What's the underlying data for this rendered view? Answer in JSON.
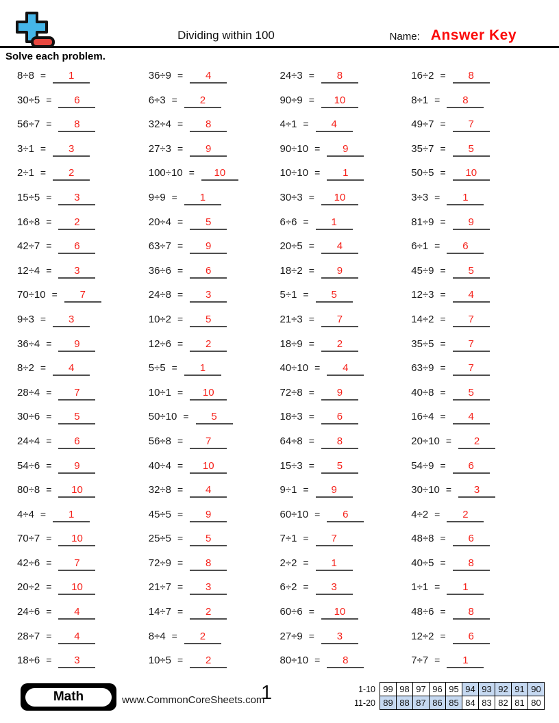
{
  "header": {
    "title": "Dividing within 100",
    "name_label": "Name:",
    "name_value": "Answer Key"
  },
  "instructions": "Solve each problem.",
  "equals_sign": "=",
  "problems": [
    {
      "expr": "8÷8",
      "ans": "1"
    },
    {
      "expr": "36÷9",
      "ans": "4"
    },
    {
      "expr": "24÷3",
      "ans": "8"
    },
    {
      "expr": "16÷2",
      "ans": "8"
    },
    {
      "expr": "30÷5",
      "ans": "6"
    },
    {
      "expr": "6÷3",
      "ans": "2"
    },
    {
      "expr": "90÷9",
      "ans": "10"
    },
    {
      "expr": "8÷1",
      "ans": "8"
    },
    {
      "expr": "56÷7",
      "ans": "8"
    },
    {
      "expr": "32÷4",
      "ans": "8"
    },
    {
      "expr": "4÷1",
      "ans": "4"
    },
    {
      "expr": "49÷7",
      "ans": "7"
    },
    {
      "expr": "3÷1",
      "ans": "3"
    },
    {
      "expr": "27÷3",
      "ans": "9"
    },
    {
      "expr": "90÷10",
      "ans": "9"
    },
    {
      "expr": "35÷7",
      "ans": "5"
    },
    {
      "expr": "2÷1",
      "ans": "2"
    },
    {
      "expr": "100÷10",
      "ans": "10"
    },
    {
      "expr": "10÷10",
      "ans": "1"
    },
    {
      "expr": "50÷5",
      "ans": "10"
    },
    {
      "expr": "15÷5",
      "ans": "3"
    },
    {
      "expr": "9÷9",
      "ans": "1"
    },
    {
      "expr": "30÷3",
      "ans": "10"
    },
    {
      "expr": "3÷3",
      "ans": "1"
    },
    {
      "expr": "16÷8",
      "ans": "2"
    },
    {
      "expr": "20÷4",
      "ans": "5"
    },
    {
      "expr": "6÷6",
      "ans": "1"
    },
    {
      "expr": "81÷9",
      "ans": "9"
    },
    {
      "expr": "42÷7",
      "ans": "6"
    },
    {
      "expr": "63÷7",
      "ans": "9"
    },
    {
      "expr": "20÷5",
      "ans": "4"
    },
    {
      "expr": "6÷1",
      "ans": "6"
    },
    {
      "expr": "12÷4",
      "ans": "3"
    },
    {
      "expr": "36÷6",
      "ans": "6"
    },
    {
      "expr": "18÷2",
      "ans": "9"
    },
    {
      "expr": "45÷9",
      "ans": "5"
    },
    {
      "expr": "70÷10",
      "ans": "7"
    },
    {
      "expr": "24÷8",
      "ans": "3"
    },
    {
      "expr": "5÷1",
      "ans": "5"
    },
    {
      "expr": "12÷3",
      "ans": "4"
    },
    {
      "expr": "9÷3",
      "ans": "3"
    },
    {
      "expr": "10÷2",
      "ans": "5"
    },
    {
      "expr": "21÷3",
      "ans": "7"
    },
    {
      "expr": "14÷2",
      "ans": "7"
    },
    {
      "expr": "36÷4",
      "ans": "9"
    },
    {
      "expr": "12÷6",
      "ans": "2"
    },
    {
      "expr": "18÷9",
      "ans": "2"
    },
    {
      "expr": "35÷5",
      "ans": "7"
    },
    {
      "expr": "8÷2",
      "ans": "4"
    },
    {
      "expr": "5÷5",
      "ans": "1"
    },
    {
      "expr": "40÷10",
      "ans": "4"
    },
    {
      "expr": "63÷9",
      "ans": "7"
    },
    {
      "expr": "28÷4",
      "ans": "7"
    },
    {
      "expr": "10÷1",
      "ans": "10"
    },
    {
      "expr": "72÷8",
      "ans": "9"
    },
    {
      "expr": "40÷8",
      "ans": "5"
    },
    {
      "expr": "30÷6",
      "ans": "5"
    },
    {
      "expr": "50÷10",
      "ans": "5"
    },
    {
      "expr": "18÷3",
      "ans": "6"
    },
    {
      "expr": "16÷4",
      "ans": "4"
    },
    {
      "expr": "24÷4",
      "ans": "6"
    },
    {
      "expr": "56÷8",
      "ans": "7"
    },
    {
      "expr": "64÷8",
      "ans": "8"
    },
    {
      "expr": "20÷10",
      "ans": "2"
    },
    {
      "expr": "54÷6",
      "ans": "9"
    },
    {
      "expr": "40÷4",
      "ans": "10"
    },
    {
      "expr": "15÷3",
      "ans": "5"
    },
    {
      "expr": "54÷9",
      "ans": "6"
    },
    {
      "expr": "80÷8",
      "ans": "10"
    },
    {
      "expr": "32÷8",
      "ans": "4"
    },
    {
      "expr": "9÷1",
      "ans": "9"
    },
    {
      "expr": "30÷10",
      "ans": "3"
    },
    {
      "expr": "4÷4",
      "ans": "1"
    },
    {
      "expr": "45÷5",
      "ans": "9"
    },
    {
      "expr": "60÷10",
      "ans": "6"
    },
    {
      "expr": "4÷2",
      "ans": "2"
    },
    {
      "expr": "70÷7",
      "ans": "10"
    },
    {
      "expr": "25÷5",
      "ans": "5"
    },
    {
      "expr": "7÷1",
      "ans": "7"
    },
    {
      "expr": "48÷8",
      "ans": "6"
    },
    {
      "expr": "42÷6",
      "ans": "7"
    },
    {
      "expr": "72÷9",
      "ans": "8"
    },
    {
      "expr": "2÷2",
      "ans": "1"
    },
    {
      "expr": "40÷5",
      "ans": "8"
    },
    {
      "expr": "20÷2",
      "ans": "10"
    },
    {
      "expr": "21÷7",
      "ans": "3"
    },
    {
      "expr": "6÷2",
      "ans": "3"
    },
    {
      "expr": "1÷1",
      "ans": "1"
    },
    {
      "expr": "24÷6",
      "ans": "4"
    },
    {
      "expr": "14÷7",
      "ans": "2"
    },
    {
      "expr": "60÷6",
      "ans": "10"
    },
    {
      "expr": "48÷6",
      "ans": "8"
    },
    {
      "expr": "28÷7",
      "ans": "4"
    },
    {
      "expr": "8÷4",
      "ans": "2"
    },
    {
      "expr": "27÷9",
      "ans": "3"
    },
    {
      "expr": "12÷2",
      "ans": "6"
    },
    {
      "expr": "18÷6",
      "ans": "3"
    },
    {
      "expr": "10÷5",
      "ans": "2"
    },
    {
      "expr": "80÷10",
      "ans": "8"
    },
    {
      "expr": "7÷7",
      "ans": "1"
    }
  ],
  "footer": {
    "subject_badge": "Math",
    "website": "www.CommonCoreSheets.com",
    "page_number": "1",
    "score_table": {
      "rows": [
        {
          "label": "1-10",
          "values": [
            "99",
            "98",
            "97",
            "96",
            "95",
            "94",
            "93",
            "92",
            "91",
            "90"
          ],
          "highlighted": [
            false,
            false,
            false,
            false,
            false,
            true,
            true,
            true,
            true,
            true
          ]
        },
        {
          "label": "11-20",
          "values": [
            "89",
            "88",
            "87",
            "86",
            "85",
            "84",
            "83",
            "82",
            "81",
            "80"
          ],
          "highlighted": [
            true,
            true,
            true,
            true,
            true,
            false,
            false,
            false,
            false,
            false
          ]
        }
      ]
    }
  },
  "colors": {
    "answer_red": "#f5221b",
    "answer_key_red": "#fb0a0a",
    "table_highlight_blue": "#c6d9f1",
    "logo_blue": "#45b5e8",
    "logo_red": "#e8473f"
  }
}
